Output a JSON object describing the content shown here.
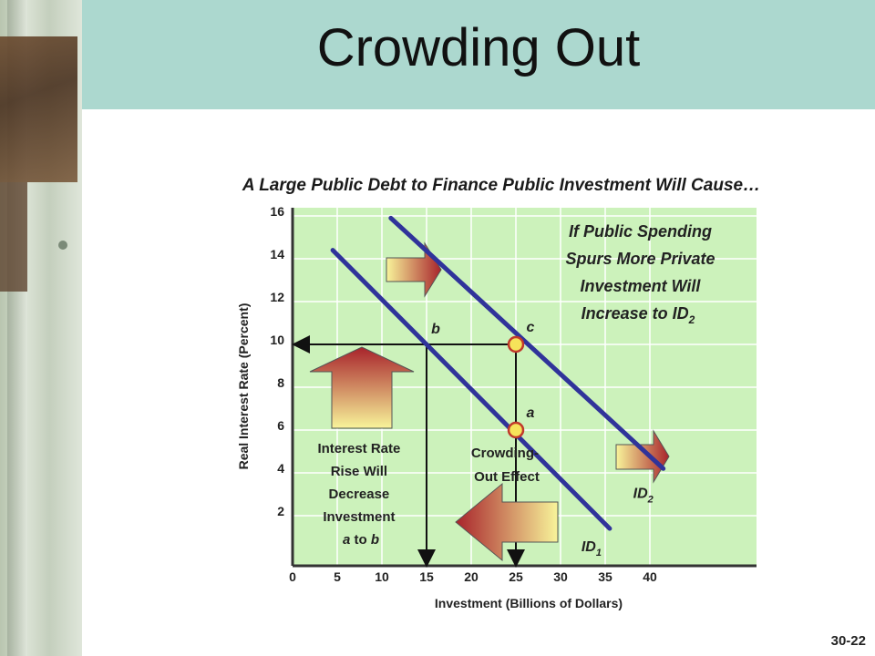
{
  "slide": {
    "title": "Crowding Out",
    "subtitle": "A Large Public Debt to Finance Public Investment Will Cause…",
    "slide_number": "30-22"
  },
  "colors": {
    "title_band": "#acd8cf",
    "plot_bg": "#ccf2bb",
    "demand_line": "#30339a",
    "point_fill": "#f6e35a",
    "point_stroke": "#c0392b"
  },
  "chart_data": {
    "type": "line",
    "title": "",
    "xlabel": "Investment (Billions of Dollars)",
    "ylabel": "Real Interest Rate (Percent)",
    "xlim": [
      0,
      42
    ],
    "ylim": [
      0,
      16.5
    ],
    "x_ticks": [
      "0",
      "5",
      "10",
      "15",
      "20",
      "25",
      "30",
      "35",
      "40"
    ],
    "y_ticks": [
      "2",
      "4",
      "6",
      "8",
      "10",
      "12",
      "14",
      "16"
    ],
    "grid": true,
    "series": [
      {
        "name": "ID1",
        "label_main": "ID",
        "label_sub": "1",
        "points": [
          [
            4.5,
            14.4
          ],
          [
            35.5,
            1.4
          ]
        ]
      },
      {
        "name": "ID2",
        "label_main": "ID",
        "label_sub": "2",
        "points": [
          [
            11,
            15.9
          ],
          [
            41.5,
            4.2
          ]
        ]
      }
    ],
    "points": [
      {
        "name": "b",
        "x": 15,
        "y": 10
      },
      {
        "name": "c",
        "x": 25,
        "y": 10
      },
      {
        "name": "a",
        "x": 25,
        "y": 6
      }
    ],
    "annotations": {
      "shift": [
        "If Public Spending",
        "Spurs More Private",
        "Investment Will",
        "Increase to ID"
      ],
      "shift_sub": "2",
      "interest": [
        "Interest Rate",
        "Rise Will",
        "Decrease",
        "Investment"
      ],
      "interest_last": [
        "a",
        " to ",
        "b"
      ],
      "crowding": [
        "Crowding-",
        "Out Effect"
      ]
    }
  }
}
